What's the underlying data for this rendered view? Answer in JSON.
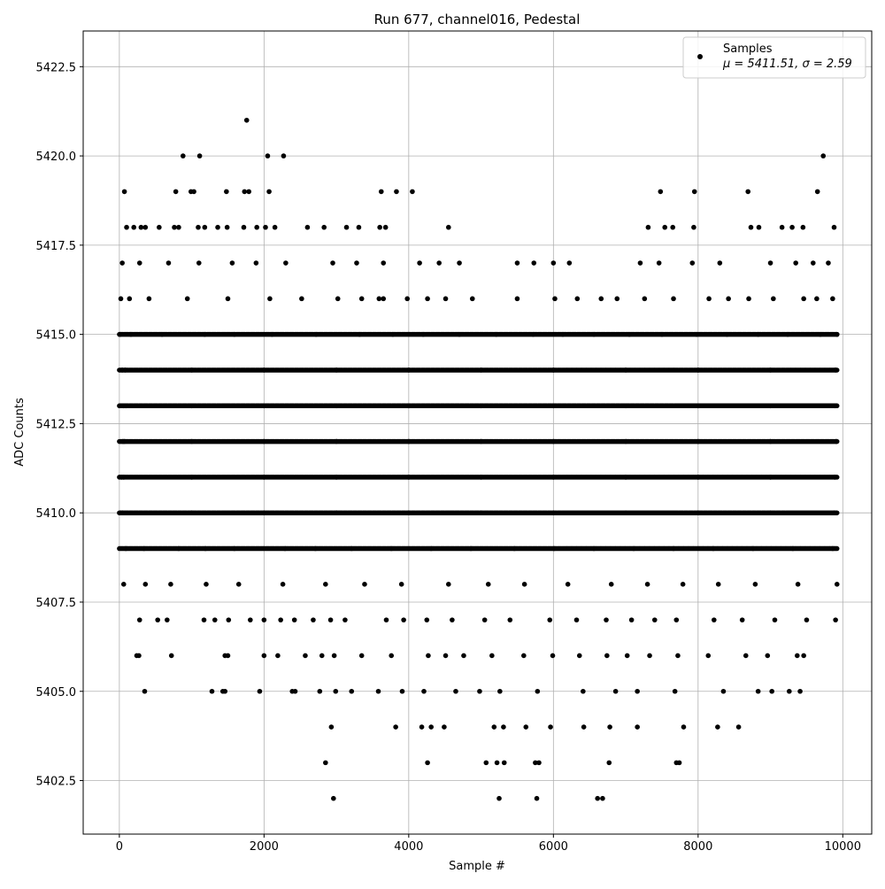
{
  "chart_data": {
    "type": "scatter",
    "title": "Run 677, channel016, Pedestal",
    "xlabel": "Sample #",
    "ylabel": "ADC Counts",
    "xlim": [
      -500,
      10400
    ],
    "ylim": [
      5401.0,
      5423.5
    ],
    "xticks": [
      0,
      2000,
      4000,
      6000,
      8000,
      10000
    ],
    "xtick_labels": [
      "0",
      "2000",
      "4000",
      "6000",
      "8000",
      "10000"
    ],
    "yticks": [
      5402.5,
      5405.0,
      5407.5,
      5410.0,
      5412.5,
      5415.0,
      5417.5,
      5420.0,
      5422.5
    ],
    "ytick_labels": [
      "5402.5",
      "5405.0",
      "5407.5",
      "5410.0",
      "5412.5",
      "5415.0",
      "5417.5",
      "5420.0",
      "5422.5"
    ],
    "grid": true,
    "legend_position": "top-right",
    "marker_color": "#000000",
    "series": [
      {
        "name": "Samples",
        "stats_label": "μ = 5411.51, σ = 2.59",
        "x": [
          1760,
          880,
          1110,
          2050,
          2270,
          9730,
          70,
          780,
          990,
          1030,
          1480,
          1730,
          1790,
          2070,
          3620,
          3830,
          4050,
          7480,
          7950,
          8690,
          9650,
          100,
          200,
          300,
          360,
          550,
          760,
          820,
          1090,
          1180,
          1360,
          1490,
          1720,
          1900,
          2020,
          2150,
          2600,
          2830,
          3140,
          3310,
          3600,
          3680,
          4550,
          7310,
          7540,
          7650,
          7940,
          8730,
          8840,
          9160,
          9300,
          9450,
          9880,
          40,
          280,
          680,
          1100,
          1560,
          1890,
          2300,
          2950,
          3280,
          3650,
          4150,
          4420,
          4700,
          5500,
          5730,
          6000,
          6220,
          7200,
          7460,
          7920,
          8300,
          9000,
          9350,
          9590,
          9800,
          20,
          140,
          410,
          940,
          1500,
          2080,
          2520,
          3020,
          3350,
          3590,
          3650,
          3980,
          4260,
          4510,
          4880,
          5500,
          6020,
          6330,
          6660,
          6880,
          7260,
          7660,
          8150,
          8420,
          8700,
          9040,
          9460,
          9640,
          9860,
          10,
          160,
          590,
          1180,
          1590,
          2110,
          2720,
          3320,
          3780,
          4200,
          4700,
          5210,
          5720,
          6130,
          6560,
          7050,
          7500,
          7980,
          8400,
          8830,
          9240,
          9690,
          9920,
          40,
          80,
          1000,
          2000,
          3000,
          4000,
          5000,
          6000,
          7000,
          8000,
          9000,
          9900,
          60,
          90,
          1000,
          2000,
          3000,
          4000,
          5000,
          6000,
          7000,
          8000,
          9000,
          9890,
          50,
          70,
          1000,
          2000,
          3000,
          4000,
          5000,
          6000,
          7000,
          8000,
          9000,
          9910,
          30,
          60,
          1000,
          2000,
          3000,
          4000,
          5000,
          6000,
          7000,
          8000,
          9000,
          9890,
          15,
          45,
          1000,
          2000,
          3000,
          4000,
          5000,
          6000,
          7000,
          8000,
          9000,
          9880,
          90,
          340,
          820,
          1190,
          1590,
          2290,
          2710,
          3210,
          3760,
          4310,
          4860,
          5460,
          6010,
          6560,
          7110,
          7660,
          8210,
          8760,
          9310,
          9860,
          60,
          360,
          710,
          1200,
          1650,
          2260,
          2850,
          3390,
          3900,
          4550,
          5100,
          5600,
          6200,
          6800,
          7300,
          7790,
          8280,
          8790,
          9380,
          9920,
          280,
          530,
          660,
          1170,
          1320,
          1510,
          1810,
          2000,
          2230,
          2420,
          2680,
          2920,
          3120,
          3690,
          3930,
          4250,
          4600,
          5050,
          5400,
          5950,
          6320,
          6730,
          7080,
          7400,
          7700,
          8220,
          8610,
          9060,
          9500,
          9900,
          240,
          270,
          720,
          1460,
          1500,
          2000,
          2190,
          2570,
          2800,
          2970,
          3350,
          3760,
          4270,
          4510,
          4760,
          5150,
          5590,
          5990,
          6360,
          6740,
          7020,
          7330,
          7720,
          8140,
          8660,
          8960,
          9370,
          9460,
          350,
          1280,
          1430,
          1460,
          1940,
          2390,
          2430,
          2770,
          2990,
          3210,
          3580,
          3910,
          4210,
          4650,
          4980,
          5260,
          5780,
          6410,
          6860,
          7160,
          7680,
          8350,
          8830,
          9020,
          9260,
          9410,
          2930,
          3820,
          4180,
          4310,
          4490,
          5180,
          5310,
          5620,
          5960,
          6420,
          6780,
          7160,
          7800,
          8270,
          8560,
          2850,
          4260,
          5070,
          5220,
          5320,
          5750,
          5800,
          6770,
          7700,
          7740,
          2960,
          5250,
          5770,
          6610,
          6680
        ],
        "y": [
          5421,
          5420,
          5420,
          5420,
          5420,
          5420,
          5419,
          5419,
          5419,
          5419,
          5419,
          5419,
          5419,
          5419,
          5419,
          5419,
          5419,
          5419,
          5419,
          5419,
          5419,
          5418,
          5418,
          5418,
          5418,
          5418,
          5418,
          5418,
          5418,
          5418,
          5418,
          5418,
          5418,
          5418,
          5418,
          5418,
          5418,
          5418,
          5418,
          5418,
          5418,
          5418,
          5418,
          5418,
          5418,
          5418,
          5418,
          5418,
          5418,
          5418,
          5418,
          5418,
          5418,
          5417,
          5417,
          5417,
          5417,
          5417,
          5417,
          5417,
          5417,
          5417,
          5417,
          5417,
          5417,
          5417,
          5417,
          5417,
          5417,
          5417,
          5417,
          5417,
          5417,
          5417,
          5417,
          5417,
          5417,
          5417,
          5416,
          5416,
          5416,
          5416,
          5416,
          5416,
          5416,
          5416,
          5416,
          5416,
          5416,
          5416,
          5416,
          5416,
          5416,
          5416,
          5416,
          5416,
          5416,
          5416,
          5416,
          5416,
          5416,
          5416,
          5416,
          5416,
          5416,
          5416,
          5416,
          5415,
          5415,
          5415,
          5415,
          5415,
          5415,
          5415,
          5415,
          5415,
          5415,
          5415,
          5415,
          5415,
          5415,
          5415,
          5415,
          5415,
          5415,
          5415,
          5415,
          5415,
          5415,
          5415,
          5414,
          5414,
          5414,
          5414,
          5414,
          5414,
          5414,
          5414,
          5414,
          5414,
          5414,
          5414,
          5413,
          5413,
          5413,
          5413,
          5413,
          5413,
          5413,
          5413,
          5413,
          5413,
          5413,
          5413,
          5412,
          5412,
          5412,
          5412,
          5412,
          5412,
          5412,
          5412,
          5412,
          5412,
          5412,
          5412,
          5411,
          5411,
          5411,
          5411,
          5411,
          5411,
          5411,
          5411,
          5411,
          5411,
          5411,
          5411,
          5410,
          5410,
          5410,
          5410,
          5410,
          5410,
          5410,
          5410,
          5410,
          5410,
          5410,
          5410,
          5409,
          5409,
          5409,
          5409,
          5409,
          5409,
          5409,
          5409,
          5409,
          5409,
          5409,
          5409,
          5409,
          5409,
          5409,
          5409,
          5409,
          5409,
          5409,
          5409,
          5408,
          5408,
          5408,
          5408,
          5408,
          5408,
          5408,
          5408,
          5408,
          5408,
          5408,
          5408,
          5408,
          5408,
          5408,
          5408,
          5408,
          5408,
          5408,
          5408,
          5407,
          5407,
          5407,
          5407,
          5407,
          5407,
          5407,
          5407,
          5407,
          5407,
          5407,
          5407,
          5407,
          5407,
          5407,
          5407,
          5407,
          5407,
          5407,
          5407,
          5407,
          5407,
          5407,
          5407,
          5407,
          5407,
          5407,
          5407,
          5407,
          5407,
          5406,
          5406,
          5406,
          5406,
          5406,
          5406,
          5406,
          5406,
          5406,
          5406,
          5406,
          5406,
          5406,
          5406,
          5406,
          5406,
          5406,
          5406,
          5406,
          5406,
          5406,
          5406,
          5406,
          5406,
          5406,
          5406,
          5406,
          5406,
          5405,
          5405,
          5405,
          5405,
          5405,
          5405,
          5405,
          5405,
          5405,
          5405,
          5405,
          5405,
          5405,
          5405,
          5405,
          5405,
          5405,
          5405,
          5405,
          5405,
          5405,
          5405,
          5405,
          5405,
          5405,
          5405,
          5404,
          5404,
          5404,
          5404,
          5404,
          5404,
          5404,
          5404,
          5404,
          5404,
          5404,
          5404,
          5404,
          5404,
          5404,
          5403,
          5403,
          5403,
          5403,
          5403,
          5403,
          5403,
          5403,
          5403,
          5403,
          5402,
          5402,
          5402,
          5402,
          5402
        ],
        "dense_levels": [
          5409,
          5410,
          5411,
          5412,
          5413,
          5414,
          5415
        ],
        "dense_x_range": [
          0,
          9920
        ]
      }
    ]
  }
}
